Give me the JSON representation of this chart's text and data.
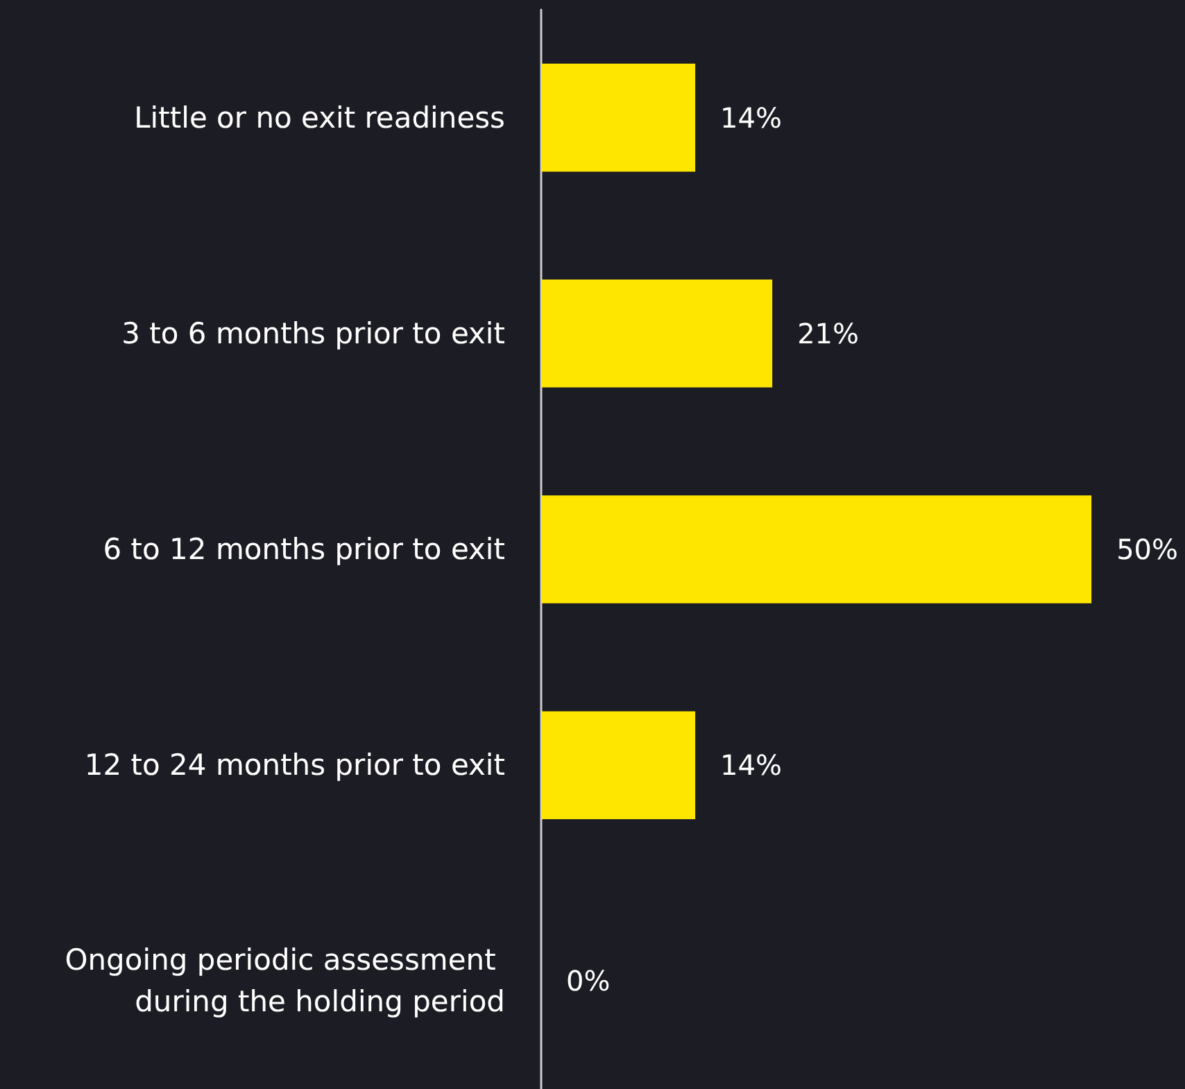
{
  "chart_data": {
    "type": "bar",
    "orientation": "horizontal",
    "categories": [
      "Little or no exit readiness",
      "3 to 6 months prior to exit",
      "6 to 12 months prior to exit",
      "12 to 24 months prior to exit",
      "Ongoing periodic assessment during the holding period"
    ],
    "values": [
      14,
      21,
      50,
      14,
      0
    ],
    "color": "#ffe600",
    "value_labels": [
      "14%",
      "21%",
      "50%",
      "14%",
      "0%"
    ]
  }
}
